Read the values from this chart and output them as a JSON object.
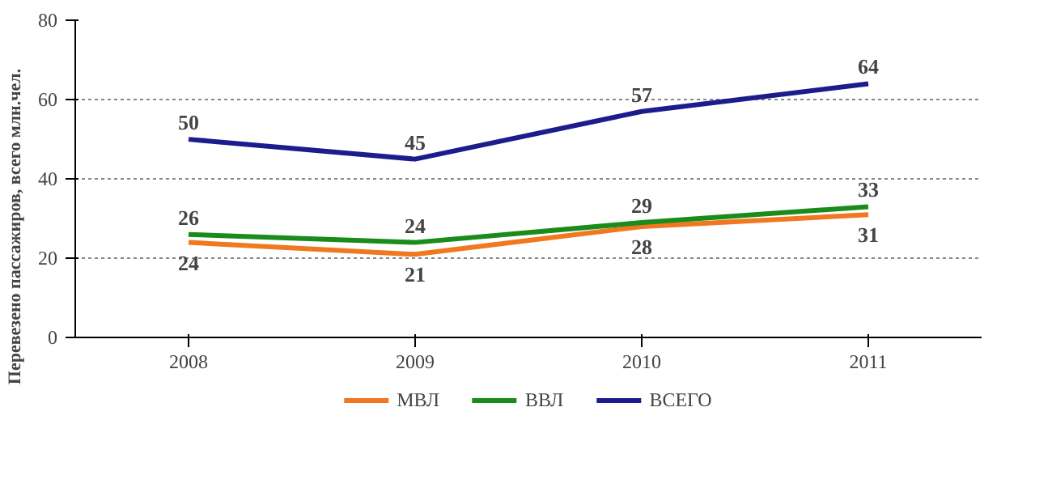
{
  "chart_data": {
    "type": "line",
    "categories": [
      "2008",
      "2009",
      "2010",
      "2011"
    ],
    "ylabel": "Перевезено пассажиров, всего млн.чел.",
    "ylim": [
      0,
      80
    ],
    "yticks": [
      0,
      20,
      40,
      60,
      80
    ],
    "grid": "y",
    "legend": "bottom",
    "data_labels": true,
    "line_style": "solid",
    "marker": "none",
    "series": [
      {
        "name": "МВЛ",
        "color": "#f07820",
        "values": [
          24,
          21,
          28,
          31
        ]
      },
      {
        "name": "ВВЛ",
        "color": "#1a8c1a",
        "values": [
          26,
          24,
          29,
          33
        ]
      },
      {
        "name": "ВСЕГО",
        "color": "#1c1c8c",
        "values": [
          50,
          45,
          57,
          64
        ]
      }
    ]
  }
}
